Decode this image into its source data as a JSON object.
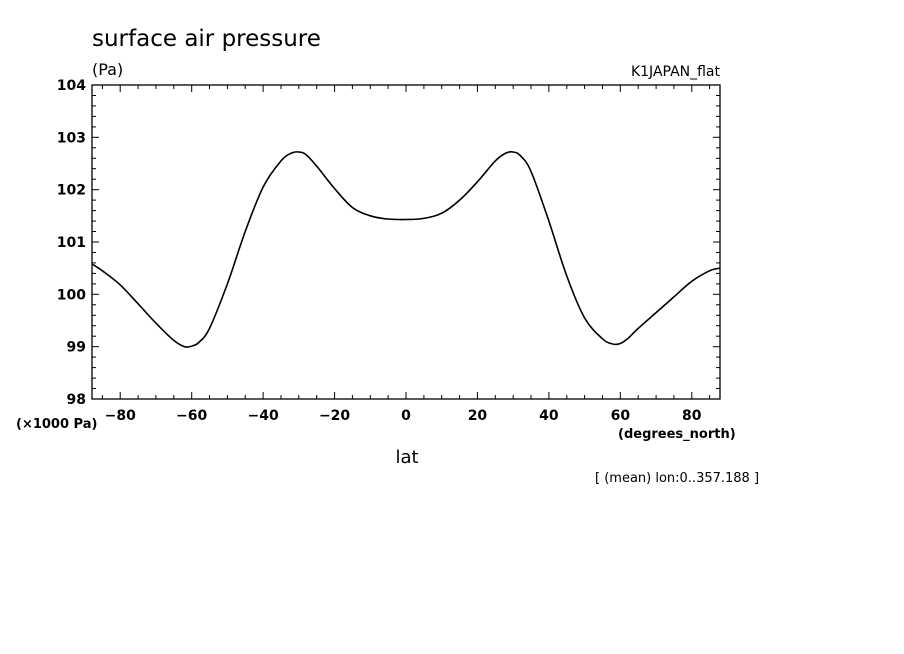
{
  "chart_data": {
    "type": "line",
    "title": "surface air pressure",
    "units_label": "(Pa)",
    "dataset_label": "K1JAPAN_flat",
    "xlabel": "lat",
    "x_units": "(degrees_north)",
    "y_multiplier": "(×1000 Pa)",
    "footnote": "[ (mean) lon:0..357.188 ]",
    "xlim": [
      -87.9,
      87.9
    ],
    "ylim": [
      98,
      104
    ],
    "x_ticks": [
      -80,
      -60,
      -40,
      -20,
      0,
      20,
      40,
      60,
      80
    ],
    "x_tick_labels": [
      "−80",
      "−60",
      "−40",
      "−20",
      "0",
      "20",
      "40",
      "60",
      "80"
    ],
    "y_ticks": [
      98,
      99,
      100,
      101,
      102,
      103,
      104
    ],
    "y_tick_labels": [
      "98",
      "99",
      "100",
      "101",
      "102",
      "103",
      "104"
    ],
    "grid": false,
    "series": [
      {
        "x": [
          -87.9,
          -85,
          -80,
          -75,
          -70,
          -65,
          -62,
          -60,
          -58,
          -55,
          -50,
          -45,
          -40,
          -35,
          -32,
          -30,
          -28,
          -25,
          -20,
          -15,
          -10,
          -5,
          0,
          5,
          10,
          15,
          20,
          25,
          28,
          30,
          32,
          35,
          40,
          45,
          50,
          55,
          58,
          60,
          62,
          65,
          70,
          75,
          80,
          85,
          87.9
        ],
        "y": [
          100.58,
          100.45,
          100.18,
          99.82,
          99.45,
          99.12,
          99.0,
          99.01,
          99.08,
          99.35,
          100.2,
          101.2,
          102.05,
          102.55,
          102.7,
          102.72,
          102.67,
          102.45,
          102.02,
          101.66,
          101.5,
          101.44,
          101.43,
          101.45,
          101.55,
          101.8,
          102.15,
          102.55,
          102.7,
          102.72,
          102.65,
          102.35,
          101.4,
          100.35,
          99.55,
          99.15,
          99.05,
          99.06,
          99.15,
          99.35,
          99.65,
          99.95,
          100.25,
          100.45,
          100.5
        ]
      }
    ]
  }
}
